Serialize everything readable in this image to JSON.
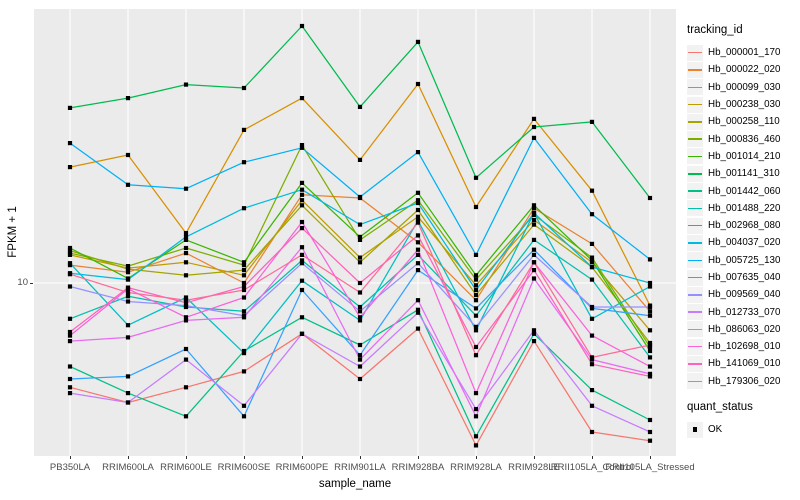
{
  "legend": {
    "tracking_title": "tracking_id",
    "quant_title": "quant_status",
    "quant_ok_label": "OK"
  },
  "chart_data": {
    "type": "line",
    "title": "",
    "xlabel": "sample_name",
    "ylabel": "FPKM + 1",
    "y_scale": "log10",
    "y_tick_labels": [
      "10"
    ],
    "grid": "white-on-gray",
    "legend_position": "right",
    "marker": "black-square",
    "panel_color": "#EBEBEB",
    "x_categories": [
      "PB350LA",
      "RRIM600LA",
      "RRIM600LE",
      "RRIM600SE",
      "RRIM600PE",
      "RRIM901LA",
      "RRIM928BA",
      "RRIM928LA",
      "RRIM928LE",
      "RRII105LA_Control",
      "RRII105LA_Stressed"
    ],
    "series": [
      {
        "name": "Hb_000001_170",
        "color": "#F8766D",
        "values": [
          4.0,
          3.5,
          4.0,
          4.6,
          6.4,
          4.3,
          6.7,
          2.4,
          6.0,
          2.7,
          2.5
        ]
      },
      {
        "name": "Hb_000022_020",
        "color": "#EA8331",
        "values": [
          11.7,
          11.0,
          13.0,
          10.0,
          21.7,
          21.1,
          14.3,
          8.6,
          19.3,
          14.1,
          7.8
        ]
      },
      {
        "name": "Hb_000099_030",
        "color": "#D89000",
        "values": [
          27.7,
          30.8,
          15.5,
          38.4,
          50.8,
          29.5,
          57.5,
          19.5,
          42.3,
          22.5,
          8.2
        ]
      },
      {
        "name": "Hb_000238_030",
        "color": "#C09B00",
        "values": [
          12.8,
          11.4,
          12.0,
          10.7,
          20.7,
          12.5,
          17.9,
          9.8,
          17.4,
          12.0,
          6.6
        ]
      },
      {
        "name": "Hb_000258_110",
        "color": "#A3A500",
        "values": [
          13.3,
          11.3,
          10.7,
          11.2,
          19.8,
          12.0,
          19.0,
          9.0,
          16.7,
          11.5,
          5.9
        ]
      },
      {
        "name": "Hb_000836_460",
        "color": "#7CAE00",
        "values": [
          13.0,
          11.6,
          13.6,
          11.7,
          33.6,
          14.6,
          20.7,
          10.3,
          18.2,
          12.5,
          5.7
        ]
      },
      {
        "name": "Hb_001014_210",
        "color": "#39B600",
        "values": [
          13.6,
          10.4,
          14.6,
          12.0,
          24.1,
          15.0,
          22.1,
          10.7,
          19.8,
          12.2,
          5.5
        ]
      },
      {
        "name": "Hb_001141_310",
        "color": "#00BB4E",
        "values": [
          46.6,
          50.8,
          57.2,
          55.5,
          95.7,
          47.0,
          83.2,
          25.2,
          39.4,
          41.2,
          21.1
        ]
      },
      {
        "name": "Hb_001442_060",
        "color": "#00C087",
        "values": [
          4.8,
          3.8,
          3.1,
          5.5,
          7.4,
          5.8,
          7.9,
          2.6,
          6.4,
          3.9,
          3.0
        ]
      },
      {
        "name": "Hb_001488_220",
        "color": "#00C1AB",
        "values": [
          7.3,
          8.9,
          8.1,
          7.8,
          12.2,
          8.1,
          12.8,
          7.5,
          14.6,
          10.3,
          5.2
        ]
      },
      {
        "name": "Hb_002968_080",
        "color": "#00BFC4",
        "values": [
          11.9,
          6.9,
          8.8,
          5.4,
          10.2,
          7.2,
          17.3,
          6.6,
          18.5,
          7.3,
          9.7
        ]
      },
      {
        "name": "Hb_004037_020",
        "color": "#00BAE0",
        "values": [
          10.9,
          10.3,
          15.0,
          19.3,
          22.7,
          16.7,
          20.2,
          9.4,
          18.5,
          11.5,
          10.0
        ]
      },
      {
        "name": "Hb_005725_130",
        "color": "#00B0F6",
        "values": [
          34.2,
          23.7,
          22.9,
          28.9,
          32.8,
          21.3,
          31.6,
          12.8,
          35.8,
          18.3,
          12.3
        ]
      },
      {
        "name": "Hb_007635_040",
        "color": "#35A2FF",
        "values": [
          4.3,
          4.4,
          5.6,
          3.1,
          9.4,
          5.3,
          11.2,
          8.0,
          13.4,
          8.0,
          7.5
        ]
      },
      {
        "name": "Hb_009569_040",
        "color": "#9590FF",
        "values": [
          9.7,
          8.5,
          8.2,
          7.5,
          11.9,
          7.8,
          11.9,
          6.8,
          12.8,
          8.1,
          8.1
        ]
      },
      {
        "name": "Hb_012733_070",
        "color": "#C77CFF",
        "values": [
          3.8,
          3.5,
          5.1,
          3.4,
          6.4,
          4.8,
          7.7,
          3.3,
          6.6,
          3.4,
          2.7
        ]
      },
      {
        "name": "Hb_086063_020",
        "color": "#E76BF3",
        "values": [
          6.0,
          6.2,
          7.2,
          7.4,
          13.7,
          5.1,
          8.6,
          3.1,
          10.4,
          5.1,
          4.5
        ]
      },
      {
        "name": "Hb_102698_010",
        "color": "#FA62DB",
        "values": [
          6.3,
          9.5,
          7.4,
          8.8,
          17.1,
          7.4,
          13.4,
          3.8,
          12.0,
          6.3,
          4.8
        ]
      },
      {
        "name": "Hb_141069_010",
        "color": "#FF62BC",
        "values": [
          6.5,
          9.6,
          8.4,
          9.7,
          16.2,
          10.0,
          15.2,
          5.7,
          11.2,
          4.9,
          4.4
        ]
      },
      {
        "name": "Hb_179306_020",
        "color": "#FF6A98",
        "values": [
          10.8,
          9.2,
          8.6,
          9.4,
          12.8,
          9.2,
          17.0,
          5.3,
          12.0,
          5.2,
          5.8
        ]
      }
    ]
  }
}
